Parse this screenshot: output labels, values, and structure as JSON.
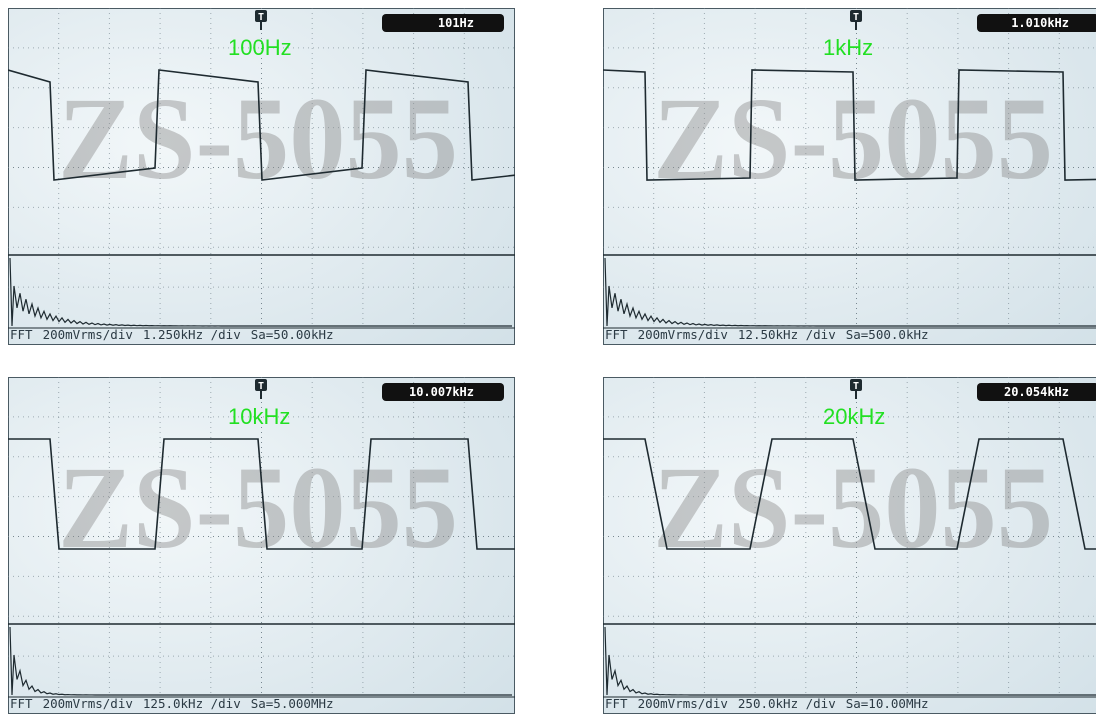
{
  "panels": [
    {
      "readout": "101Hz",
      "label": "100Hz",
      "footer": [
        "FFT",
        "200mVrms/div",
        "1.250kHz /div",
        "Sa=50.00kHz"
      ],
      "watermark": "ZS-5055",
      "trigger": "T"
    },
    {
      "readout": "1.010kHz",
      "label": "1kHz",
      "footer": [
        "FFT",
        "200mVrms/div",
        "12.50kHz /div",
        "Sa=500.0kHz"
      ],
      "watermark": "ZS-5055",
      "trigger": "T"
    },
    {
      "readout": "10.007kHz",
      "label": "10kHz",
      "footer": [
        "FFT",
        "200mVrms/div",
        "125.0kHz /div",
        "Sa=5.000MHz"
      ],
      "watermark": "ZS-5055",
      "trigger": "T"
    },
    {
      "readout": "20.054kHz",
      "label": "20kHz",
      "footer": [
        "FFT",
        "200mVrms/div",
        "250.0kHz /div",
        "Sa=10.00MHz"
      ],
      "watermark": "ZS-5055",
      "trigger": "T"
    }
  ]
}
